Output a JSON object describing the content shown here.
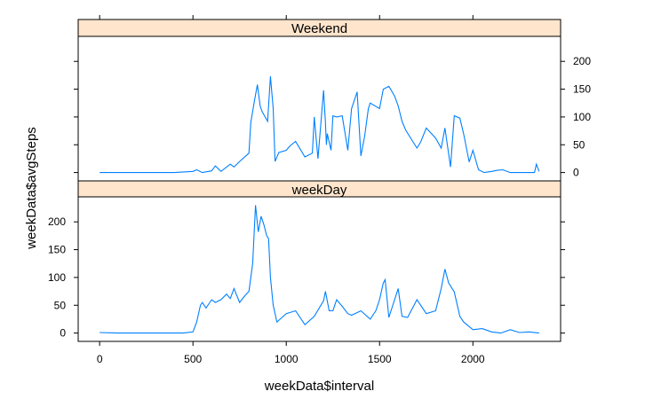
{
  "chart_data": {
    "type": "line",
    "xlabel": "weekData$interval",
    "ylabel": "weekData$avgSteps",
    "xlim": [
      -115,
      2470
    ],
    "ylim": [
      -15,
      245
    ],
    "x_ticks": [
      0,
      500,
      1000,
      1500,
      2000
    ],
    "y_ticks": [
      0,
      50,
      100,
      150,
      200
    ],
    "line_color": "#0080ff",
    "strip_color": "#ffe5cc",
    "panels": [
      {
        "name": "Weekend",
        "series": [
          {
            "x": [
              0,
              100,
              200,
              300,
              400,
              500,
              520,
              550,
              600,
              620,
              650,
              700,
              720,
              750,
              800,
              810,
              830,
              845,
              860,
              870,
              900,
              915,
              930,
              940,
              960,
              1000,
              1020,
              1050,
              1100,
              1140,
              1150,
              1170,
              1200,
              1210,
              1215,
              1220,
              1240,
              1250,
              1270,
              1300,
              1330,
              1350,
              1380,
              1400,
              1420,
              1440,
              1450,
              1500,
              1520,
              1550,
              1580,
              1600,
              1620,
              1640,
              1700,
              1720,
              1750,
              1800,
              1830,
              1850,
              1880,
              1900,
              1930,
              1950,
              1980,
              2000,
              2030,
              2060,
              2100,
              2130,
              2160,
              2200,
              2230,
              2300,
              2330,
              2340,
              2355
            ],
            "y": [
              0,
              0,
              0,
              0,
              0,
              2,
              5,
              0,
              3,
              12,
              2,
              15,
              10,
              20,
              35,
              90,
              130,
              158,
              120,
              110,
              92,
              173,
              115,
              20,
              36,
              40,
              48,
              56,
              28,
              35,
              100,
              25,
              148,
              90,
              50,
              70,
              40,
              102,
              100,
              102,
              40,
              115,
              145,
              30,
              65,
              115,
              125,
              115,
              150,
              155,
              138,
              120,
              92,
              76,
              44,
              55,
              80,
              62,
              44,
              80,
              10,
              102,
              98,
              70,
              19,
              40,
              5,
              0,
              2,
              4,
              5,
              0,
              0,
              0,
              0,
              15,
              2
            ]
          }
        ]
      },
      {
        "name": "weekDay",
        "series": [
          {
            "x": [
              0,
              100,
              200,
              300,
              400,
              450,
              500,
              520,
              540,
              550,
              570,
              600,
              620,
              650,
              680,
              700,
              720,
              750,
              780,
              800,
              820,
              835,
              850,
              865,
              880,
              895,
              905,
              915,
              930,
              950,
              1000,
              1050,
              1100,
              1150,
              1200,
              1210,
              1230,
              1250,
              1270,
              1300,
              1330,
              1350,
              1400,
              1450,
              1480,
              1500,
              1520,
              1530,
              1550,
              1600,
              1620,
              1650,
              1700,
              1750,
              1800,
              1830,
              1850,
              1870,
              1900,
              1930,
              1950,
              2000,
              2050,
              2100,
              2150,
              2200,
              2250,
              2300,
              2355
            ],
            "y": [
              1,
              0,
              0,
              0,
              0,
              0,
              2,
              20,
              50,
              55,
              45,
              60,
              55,
              60,
              70,
              62,
              80,
              55,
              68,
              75,
              125,
              230,
              182,
              210,
              195,
              175,
              170,
              100,
              50,
              20,
              35,
              40,
              15,
              30,
              58,
              75,
              40,
              40,
              60,
              48,
              35,
              32,
              40,
              25,
              40,
              60,
              90,
              96,
              28,
              80,
              30,
              28,
              60,
              35,
              40,
              80,
              115,
              90,
              74,
              30,
              20,
              6,
              8,
              2,
              0,
              6,
              1,
              2,
              0
            ]
          }
        ]
      }
    ]
  }
}
